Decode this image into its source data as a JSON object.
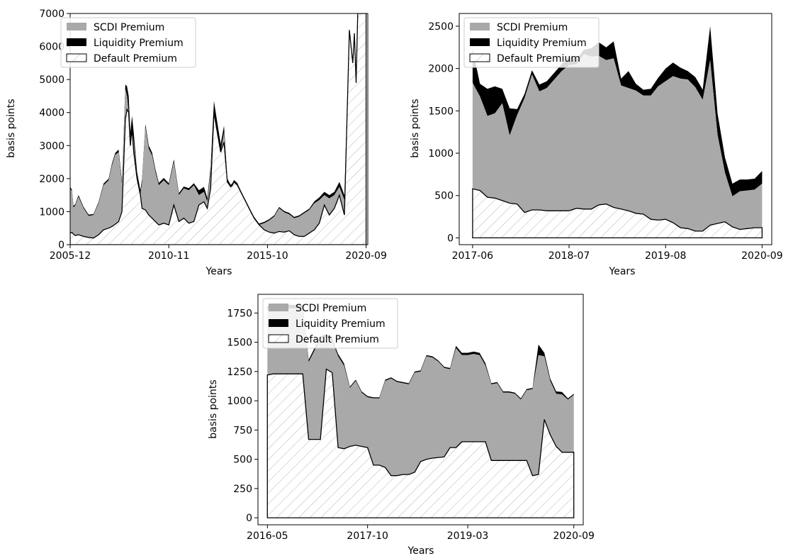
{
  "legend_labels": [
    "SCDI Premium",
    "Liquidity Premium",
    "Default Premium"
  ],
  "colors": {
    "scdi": "#a9a9a9",
    "liquidity": "#000000",
    "default_fill": "#ffffff",
    "hatch": "#b5b5b5"
  },
  "chart_data": [
    {
      "type": "area",
      "stacked": true,
      "xlabel": "Years",
      "ylabel": "basis points",
      "ylim": [
        0,
        7000
      ],
      "y_ticks": [
        0,
        1000,
        2000,
        3000,
        4000,
        5000,
        6000,
        7000
      ],
      "x_tick_labels": [
        "2005-12",
        "2010-11",
        "2015-10",
        "2020-09"
      ],
      "xlim": [
        0,
        178
      ],
      "x_tick_positions": [
        0,
        59,
        118,
        177
      ],
      "legend_position": "top-left",
      "series_names": [
        "SCDI Premium",
        "Liquidity Premium",
        "Default Premium"
      ],
      "x": [
        0,
        1,
        2,
        3,
        5,
        8,
        11,
        14,
        17,
        20,
        23,
        25,
        27,
        29,
        31,
        33,
        34,
        35,
        36,
        37,
        38,
        40,
        42,
        43,
        45,
        47,
        49,
        51,
        53,
        56,
        59,
        62,
        65,
        68,
        71,
        74,
        77,
        80,
        82,
        84,
        86,
        88,
        90,
        92,
        94,
        96,
        97,
        98,
        100,
        101,
        103,
        105,
        106,
        108,
        110,
        113,
        116,
        119,
        122,
        125,
        128,
        131,
        134,
        137,
        140,
        143,
        146,
        149,
        152,
        155,
        158,
        161,
        164,
        167,
        169,
        170,
        171,
        172,
        173,
        174,
        175,
        176,
        177
      ],
      "default": [
        350,
        370,
        320,
        280,
        300,
        250,
        220,
        200,
        300,
        450,
        500,
        550,
        620,
        700,
        1000,
        3800,
        4100,
        4000,
        3000,
        3500,
        2800,
        2000,
        1500,
        1100,
        1050,
        900,
        800,
        700,
        600,
        650,
        600,
        1200,
        700,
        800,
        650,
        700,
        1200,
        1300,
        1100,
        1700,
        4000,
        3400,
        2800,
        3100,
        1900,
        1750,
        1800,
        1900,
        1800,
        1700,
        1500,
        1300,
        1200,
        1000,
        800,
        600,
        450,
        380,
        350,
        400,
        380,
        420,
        300,
        250,
        250,
        350,
        450,
        650,
        1200,
        900,
        1100,
        1500,
        900,
        6500,
        5500,
        6400,
        4900,
        7000,
        7000,
        7000,
        7000,
        7000,
        7000
      ],
      "scdi": [
        1350,
        1250,
        800,
        900,
        1150,
        850,
        650,
        700,
        950,
        1350,
        1450,
        1850,
        2100,
        2100,
        800,
        900,
        400,
        0,
        200,
        0,
        300,
        0,
        0,
        800,
        2500,
        2000,
        1900,
        1500,
        1200,
        1300,
        1200,
        1300,
        800,
        900,
        1000,
        1100,
        300,
        300,
        200,
        500,
        0,
        0,
        0,
        300,
        0,
        0,
        0,
        0,
        0,
        0,
        0,
        0,
        0,
        0,
        0,
        0,
        200,
        350,
        500,
        700,
        600,
        500,
        500,
        600,
        700,
        700,
        800,
        700,
        300,
        500,
        400,
        250,
        450,
        0,
        0,
        0,
        0,
        0,
        0,
        0,
        0,
        0,
        0
      ],
      "liquidity": [
        50,
        50,
        60,
        40,
        50,
        40,
        40,
        30,
        40,
        50,
        50,
        60,
        60,
        80,
        120,
        150,
        300,
        500,
        200,
        400,
        300,
        200,
        150,
        100,
        100,
        100,
        90,
        80,
        70,
        70,
        60,
        80,
        60,
        60,
        60,
        60,
        150,
        150,
        120,
        150,
        350,
        300,
        250,
        200,
        100,
        60,
        60,
        60,
        60,
        50,
        40,
        40,
        40,
        40,
        40,
        40,
        40,
        40,
        40,
        40,
        40,
        40,
        40,
        40,
        40,
        40,
        60,
        80,
        100,
        100,
        100,
        150,
        150,
        0,
        0,
        0,
        0,
        0,
        0,
        0,
        0,
        0,
        0
      ]
    },
    {
      "type": "area",
      "stacked": true,
      "xlabel": "Years",
      "ylabel": "basis points",
      "ylim": [
        -80,
        2650
      ],
      "y_ticks": [
        0,
        500,
        1000,
        1500,
        2000,
        2500
      ],
      "x_tick_labels": [
        "2017-06",
        "2018-07",
        "2019-08",
        "2020-09"
      ],
      "xlim": [
        -1.8,
        40.3
      ],
      "x_tick_positions": [
        0,
        13,
        26,
        39
      ],
      "legend_position": "top-left",
      "series_names": [
        "SCDI Premium",
        "Liquidity Premium",
        "Default Premium"
      ],
      "x": [
        0,
        1,
        2,
        3,
        4,
        5,
        6,
        7,
        8,
        9,
        10,
        11,
        12,
        13,
        14,
        15,
        16,
        17,
        18,
        19,
        20,
        21,
        22,
        23,
        24,
        25,
        26,
        27,
        28,
        29,
        30,
        31,
        32,
        33,
        34,
        35,
        36,
        37,
        38,
        39
      ],
      "default": [
        580,
        560,
        480,
        470,
        440,
        410,
        400,
        300,
        330,
        330,
        320,
        320,
        320,
        320,
        350,
        340,
        340,
        390,
        400,
        360,
        340,
        320,
        290,
        280,
        220,
        210,
        220,
        180,
        120,
        110,
        80,
        80,
        150,
        170,
        190,
        130,
        100,
        110,
        120,
        120
      ],
      "scdi": [
        1250,
        1110,
        960,
        1000,
        1150,
        800,
        1050,
        1350,
        1600,
        1400,
        1450,
        1550,
        1650,
        1720,
        1700,
        1830,
        1800,
        1760,
        1700,
        1760,
        1460,
        1450,
        1450,
        1400,
        1460,
        1580,
        1630,
        1730,
        1760,
        1760,
        1700,
        1550,
        1950,
        1050,
        580,
        360,
        450,
        450,
        450,
        520
      ],
      "liquidity": [
        400,
        150,
        320,
        320,
        170,
        320,
        70,
        50,
        50,
        80,
        80,
        80,
        80,
        100,
        60,
        50,
        100,
        160,
        150,
        200,
        80,
        200,
        80,
        70,
        80,
        100,
        150,
        160,
        130,
        100,
        120,
        120,
        400,
        250,
        180,
        150,
        140,
        130,
        130,
        150
      ]
    },
    {
      "type": "area",
      "stacked": true,
      "xlabel": "Years",
      "ylabel": "basis points",
      "ylim": [
        -60,
        1910
      ],
      "y_ticks": [
        0,
        250,
        500,
        750,
        1000,
        1250,
        1500,
        1750
      ],
      "x_tick_labels": [
        "2016-05",
        "2017-10",
        "2019-03",
        "2020-09"
      ],
      "xlim": [
        -1.6,
        53.6
      ],
      "x_tick_positions": [
        0,
        17,
        34,
        52
      ],
      "legend_position": "top-left",
      "series_names": [
        "SCDI Premium",
        "Liquidity Premium",
        "Default Premium"
      ],
      "x": [
        0,
        1,
        2,
        3,
        4,
        5,
        6,
        7,
        8,
        9,
        10,
        11,
        12,
        13,
        14,
        15,
        16,
        17,
        18,
        19,
        20,
        21,
        22,
        23,
        24,
        25,
        26,
        27,
        28,
        29,
        30,
        31,
        32,
        33,
        34,
        35,
        36,
        37,
        38,
        39,
        40,
        41,
        42,
        43,
        44,
        45,
        46,
        47,
        48,
        49,
        50,
        51,
        52
      ],
      "default": [
        1220,
        1230,
        1230,
        1230,
        1230,
        1230,
        1230,
        670,
        670,
        670,
        1270,
        1240,
        600,
        590,
        610,
        620,
        610,
        600,
        450,
        450,
        430,
        360,
        360,
        370,
        370,
        390,
        480,
        500,
        510,
        515,
        520,
        600,
        600,
        650,
        650,
        650,
        650,
        650,
        490,
        490,
        490,
        490,
        490,
        490,
        490,
        360,
        370,
        840,
        710,
        610,
        560,
        560,
        560
      ],
      "scdi": [
        560,
        560,
        560,
        560,
        560,
        560,
        560,
        660,
        760,
        860,
        280,
        270,
        780,
        710,
        500,
        550,
        460,
        430,
        570,
        570,
        740,
        830,
        800,
        780,
        770,
        850,
        770,
        880,
        860,
        820,
        760,
        670,
        850,
        740,
        740,
        750,
        740,
        650,
        650,
        660,
        580,
        580,
        570,
        520,
        600,
        740,
        1020,
        540,
        460,
        450,
        495,
        450,
        490
      ],
      "liquidity": [
        30,
        30,
        30,
        30,
        30,
        30,
        30,
        20,
        20,
        20,
        20,
        20,
        20,
        20,
        10,
        10,
        10,
        10,
        10,
        10,
        10,
        10,
        10,
        10,
        10,
        10,
        10,
        10,
        10,
        10,
        10,
        10,
        20,
        20,
        20,
        20,
        20,
        20,
        10,
        10,
        10,
        10,
        10,
        10,
        10,
        10,
        90,
        30,
        20,
        20,
        20,
        10,
        10
      ]
    }
  ]
}
